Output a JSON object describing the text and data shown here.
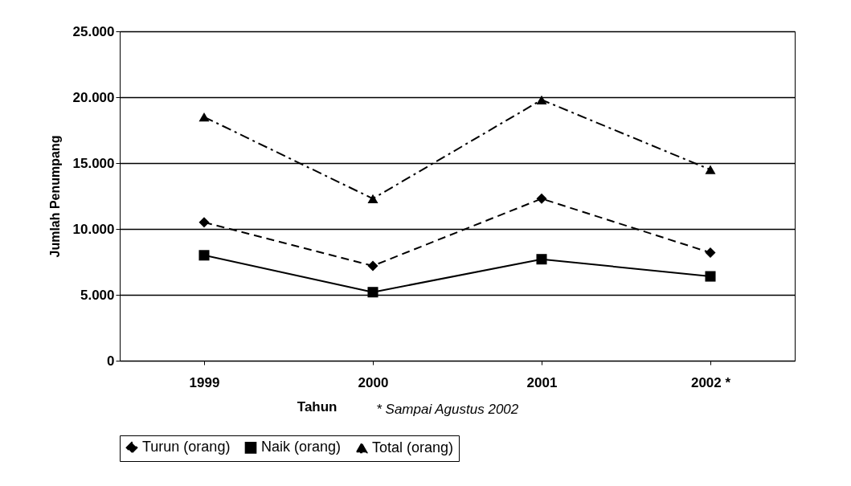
{
  "chart_data": {
    "type": "line",
    "xlabel": "Tahun",
    "ylabel": "Jumlah Penumpang",
    "annotations": [
      "* Sampai Agustus 2002"
    ],
    "categories": [
      "1999",
      "2000",
      "2001",
      "2002 *"
    ],
    "series": [
      {
        "name": "Turun (orang)",
        "color": "#000000",
        "marker": "diamond",
        "line_style": "dashed",
        "values": [
          10500,
          7200,
          12300,
          8200
        ]
      },
      {
        "name": "Naik (orang)",
        "color": "#000000",
        "marker": "square",
        "line_style": "solid",
        "values": [
          8000,
          5200,
          7700,
          6400
        ]
      },
      {
        "name": "Total (orang)",
        "color": "#000000",
        "marker": "triangle",
        "line_style": "dashdot",
        "values": [
          18500,
          12300,
          19800,
          14500
        ]
      }
    ],
    "ylim": [
      0,
      25000
    ],
    "yticks": [
      {
        "value": 0,
        "label": "0"
      },
      {
        "value": 5000,
        "label": "5.000"
      },
      {
        "value": 10000,
        "label": "10.000"
      },
      {
        "value": 15000,
        "label": "15.000"
      },
      {
        "value": 20000,
        "label": "20.000"
      },
      {
        "value": 25000,
        "label": "25.000"
      }
    ],
    "grid": "y",
    "legend": "bottom"
  }
}
